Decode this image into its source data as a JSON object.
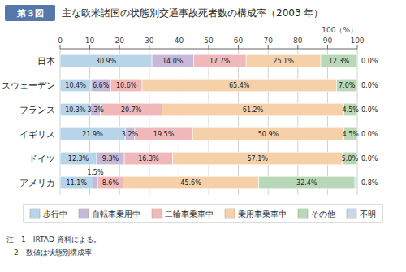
{
  "chart_data": {
    "type": "bar",
    "orientation": "horizontal",
    "stacked": true,
    "data_labels": true,
    "grid": true,
    "legend": "bottom",
    "title": "主な欧米諸国の状態別交通事故死者数の構成率（2003 年）",
    "xlabel": "100（%）",
    "annotations": [
      "第３図",
      "注　1　IRTAD 資料による。",
      "　2　数値は状態別構成率"
    ],
    "categories": [
      "日本",
      "スウェーデン",
      "フランス",
      "イギリス",
      "ドイツ",
      "アメリカ"
    ],
    "xlim": [
      0,
      100
    ],
    "xticks": [
      0,
      10,
      20,
      30,
      40,
      50,
      60,
      70,
      80,
      90,
      100
    ],
    "series": [
      {
        "name": "歩行中",
        "color": "#b8d4e8",
        "values": [
          30.9,
          10.4,
          10.3,
          21.9,
          12.3,
          11.1
        ],
        "value_labels": [
          "30.9%",
          "10.4%",
          "10.3%",
          "21.9%",
          "12.3%",
          "11.1%"
        ]
      },
      {
        "name": "自転車乗用中",
        "color": "#c8b8d8",
        "values": [
          14.0,
          6.6,
          3.3,
          3.2,
          9.3,
          1.5
        ],
        "value_labels": [
          "14.0%",
          "6.6%",
          "3.3%",
          "3.2%",
          "9.3%",
          "1.5%"
        ]
      },
      {
        "name": "二輪車乗車中",
        "color": "#f0b8b8",
        "values": [
          17.7,
          10.6,
          20.7,
          19.5,
          16.3,
          8.6
        ],
        "value_labels": [
          "17.7%",
          "10.6%",
          "20.7%",
          "19.5%",
          "16.3%",
          "8.6%"
        ]
      },
      {
        "name": "乗用車乗車中",
        "color": "#f5d0a8",
        "values": [
          25.1,
          65.4,
          61.2,
          50.9,
          57.1,
          45.6
        ],
        "value_labels": [
          "25.1%",
          "65.4%",
          "61.2%",
          "50.9%",
          "57.1%",
          "45.6%"
        ]
      },
      {
        "name": "その他",
        "color": "#b8d8b8",
        "values": [
          12.3,
          7.0,
          4.5,
          4.5,
          5.0,
          32.4
        ],
        "value_labels": [
          "12.3%",
          "7.0%",
          "4.5%",
          "4.5%",
          "5.0%",
          "32.4%"
        ]
      },
      {
        "name": "不明",
        "color": "#c8d8e8",
        "values": [
          0.0,
          0.0,
          0.0,
          0.0,
          0.0,
          0.8
        ],
        "value_labels": [
          "0.0%",
          "0.0%",
          "0.0%",
          "0.0%",
          "0.0%",
          "0.8%"
        ]
      }
    ]
  }
}
